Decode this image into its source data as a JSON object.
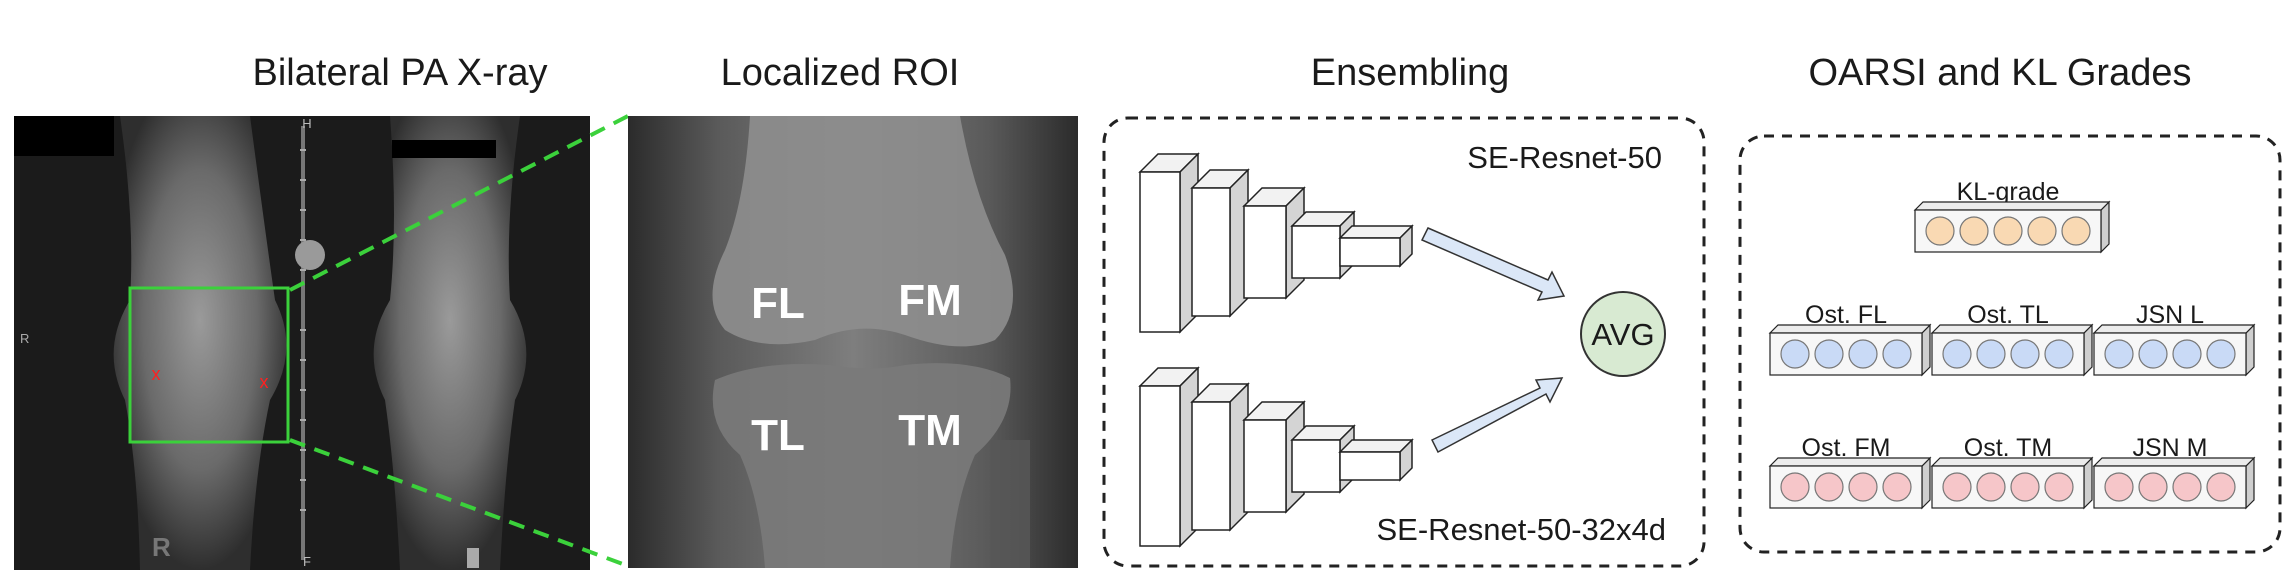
{
  "titles": {
    "xray": "Bilateral PA X-ray",
    "roi": "Localized ROI",
    "ensembling": "Ensembling",
    "grades": "OARSI and KL Grades"
  },
  "xray": {
    "side_marker": "R",
    "ruler_top": "H",
    "ruler_bottom": "F"
  },
  "roi": {
    "labels": [
      "FL",
      "FM",
      "TL",
      "TM"
    ]
  },
  "ensemble": {
    "model_top": "SE-Resnet-50",
    "model_bottom": "SE-Resnet-50-32x4d",
    "avg": "AVG"
  },
  "grades": {
    "kl": {
      "label": "KL-grade",
      "count": 5,
      "color": "#f9d9b3"
    },
    "row1": [
      {
        "label": "Ost. FL",
        "count": 4
      },
      {
        "label": "Ost. TL",
        "count": 4
      },
      {
        "label": "JSN L",
        "count": 4
      }
    ],
    "row1_color": "#c9daf6",
    "row2": [
      {
        "label": "Ost. FM",
        "count": 4
      },
      {
        "label": "Ost. TM",
        "count": 4
      },
      {
        "label": "JSN M",
        "count": 4
      }
    ],
    "row2_color": "#f6c6c9"
  },
  "colors": {
    "roi_box": "#3bd13b",
    "zoom_lines": "#3bd13b",
    "avg_fill": "#d8ead2",
    "arrow_fill": "#dbe7f7",
    "marker": "#ff2020"
  }
}
